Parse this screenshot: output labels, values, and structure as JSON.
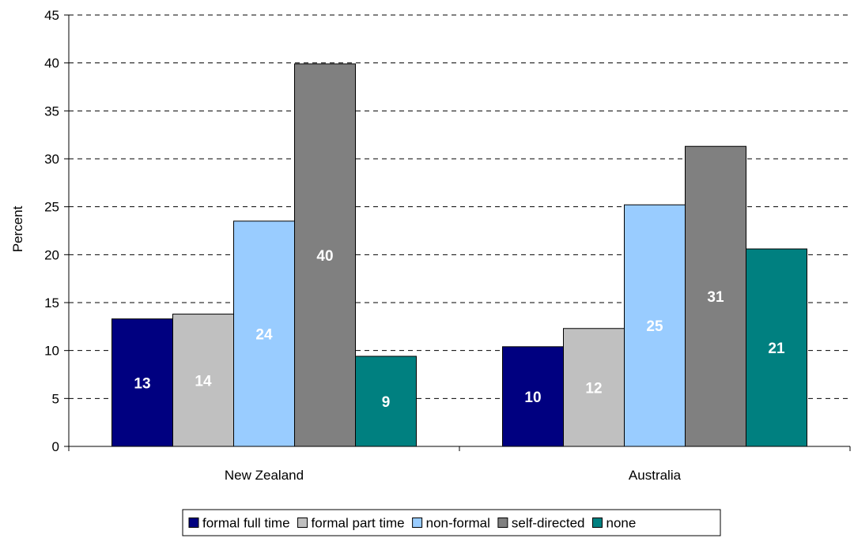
{
  "chart_data": {
    "type": "bar",
    "title": "",
    "xlabel": "",
    "ylabel": "Percent",
    "ylim": [
      0,
      45
    ],
    "yticks": [
      0,
      5,
      10,
      15,
      20,
      25,
      30,
      35,
      40,
      45
    ],
    "grid": "horizontal dashed",
    "legend_position": "bottom",
    "categories": [
      "New Zealand",
      "Australia"
    ],
    "series": [
      {
        "name": "formal full time",
        "values": [
          13.3,
          10.4
        ],
        "labels": [
          "13",
          "10"
        ],
        "color": "#000080",
        "label_color": "#ffffff"
      },
      {
        "name": "formal part time",
        "values": [
          13.8,
          12.3
        ],
        "labels": [
          "14",
          "12"
        ],
        "color": "#c0c0c0",
        "label_color": "#ffffff"
      },
      {
        "name": "non-formal",
        "values": [
          23.5,
          25.2
        ],
        "labels": [
          "24",
          "25"
        ],
        "color": "#99ccff",
        "label_color": "#ffffff"
      },
      {
        "name": "self-directed",
        "values": [
          39.9,
          31.3
        ],
        "labels": [
          "40",
          "31"
        ],
        "color": "#808080",
        "label_color": "#ffffff"
      },
      {
        "name": "none",
        "values": [
          9.4,
          20.6
        ],
        "labels": [
          "9",
          "21"
        ],
        "color": "#008080",
        "label_color": "#ffffff"
      }
    ]
  }
}
